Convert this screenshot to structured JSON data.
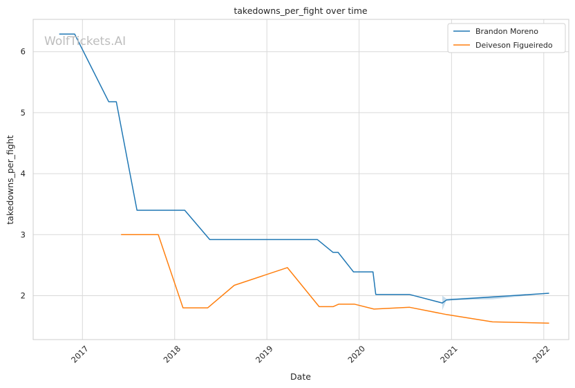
{
  "watermark": "WolfTickets.AI",
  "chart_data": {
    "type": "line",
    "title": "takedowns_per_fight over time",
    "xlabel": "Date",
    "ylabel": "takedowns_per_fight",
    "x_ticks": [
      "2017",
      "2018",
      "2019",
      "2020",
      "2021",
      "2022"
    ],
    "y_ticks": [
      2,
      3,
      4,
      5,
      6
    ],
    "xlim": [
      "2016-06-20",
      "2022-04-10"
    ],
    "ylim": [
      1.28,
      6.53
    ],
    "grid": true,
    "legend_position": "top-right",
    "series": [
      {
        "name": "Brandon Moreno",
        "color": "#1f77b4",
        "points": [
          [
            "2016-10-01",
            6.29
          ],
          [
            "2016-12-01",
            6.29
          ],
          [
            "2017-04-15",
            5.18
          ],
          [
            "2017-05-15",
            5.18
          ],
          [
            "2017-08-05",
            3.4
          ],
          [
            "2018-02-10",
            3.4
          ],
          [
            "2018-05-20",
            2.92
          ],
          [
            "2019-07-20",
            2.92
          ],
          [
            "2019-09-20",
            2.71
          ],
          [
            "2019-10-10",
            2.71
          ],
          [
            "2019-12-10",
            2.39
          ],
          [
            "2020-02-25",
            2.39
          ],
          [
            "2020-03-07",
            2.02
          ],
          [
            "2020-07-18",
            2.02
          ],
          [
            "2020-11-25",
            1.88
          ],
          [
            "2020-12-12",
            1.93
          ],
          [
            "2022-01-22",
            2.04
          ]
        ],
        "band": {
          "upper": [
            [
              "2020-11-25",
              2.0
            ],
            [
              "2020-12-12",
              1.95
            ],
            [
              "2021-06-12",
              1.99
            ],
            [
              "2022-01-22",
              2.04
            ]
          ],
          "lower": [
            [
              "2020-11-25",
              1.76
            ],
            [
              "2020-12-12",
              1.93
            ],
            [
              "2021-06-12",
              1.94
            ],
            [
              "2022-01-22",
              2.04
            ]
          ]
        }
      },
      {
        "name": "Deiveson Figueiredo",
        "color": "#ff7f0e",
        "points": [
          [
            "2017-06-03",
            3.0
          ],
          [
            "2017-10-28",
            3.0
          ],
          [
            "2018-02-03",
            1.8
          ],
          [
            "2018-05-12",
            1.8
          ],
          [
            "2018-08-25",
            2.17
          ],
          [
            "2019-03-23",
            2.46
          ],
          [
            "2019-07-27",
            1.82
          ],
          [
            "2019-09-20",
            1.82
          ],
          [
            "2019-10-12",
            1.86
          ],
          [
            "2019-12-14",
            1.86
          ],
          [
            "2020-02-29",
            1.78
          ],
          [
            "2020-07-19",
            1.81
          ],
          [
            "2020-12-12",
            1.69
          ],
          [
            "2021-06-12",
            1.57
          ],
          [
            "2022-01-22",
            1.55
          ]
        ]
      }
    ]
  }
}
